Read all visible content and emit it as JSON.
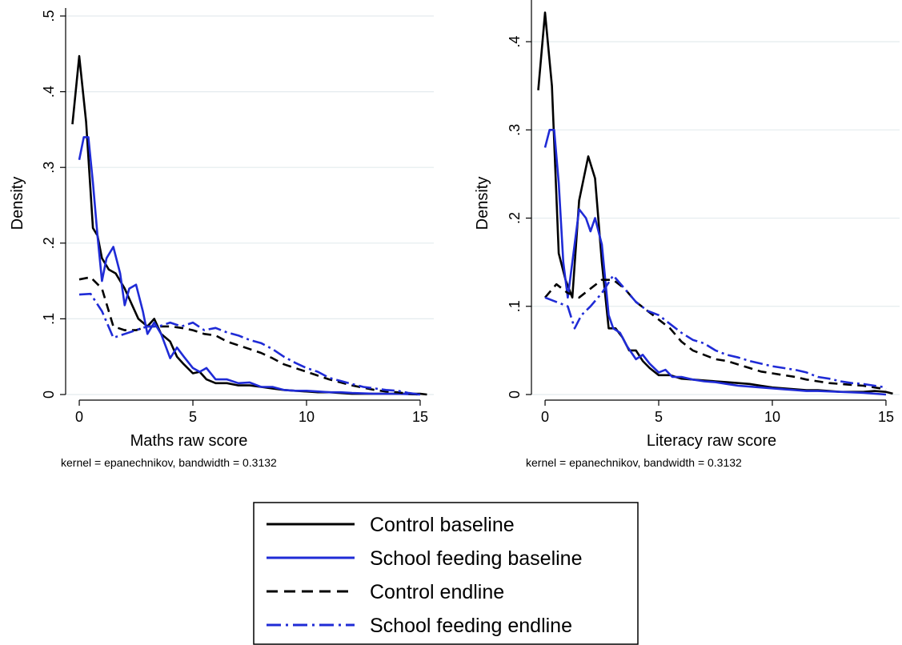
{
  "chart_data": [
    {
      "type": "line",
      "xlabel": "Maths raw score",
      "ylabel": "Density",
      "note": "kernel = epanechnikov, bandwidth = 0.3132",
      "xlim": [
        -0.6,
        15.6
      ],
      "ylim": [
        0,
        0.5
      ],
      "xticks": [
        0,
        5,
        10,
        15
      ],
      "xtick_labels": [
        "0",
        "5",
        "10",
        "15"
      ],
      "yticks": [
        0,
        0.1,
        0.2,
        0.3,
        0.4,
        0.5
      ],
      "ytick_labels": [
        "0",
        ".1",
        ".2",
        ".3",
        ".4",
        ".5"
      ],
      "grid": true,
      "series": [
        {
          "name": "Control baseline",
          "color": "#000000",
          "dash": "solid",
          "x": [
            -0.3,
            0,
            0.3,
            0.6,
            0.8,
            1,
            1.3,
            1.6,
            2,
            2.3,
            2.6,
            3,
            3.3,
            3.6,
            4,
            4.3,
            4.6,
            5,
            5.3,
            5.6,
            6,
            6.5,
            7,
            7.5,
            8,
            8.5,
            9,
            9.5,
            10,
            10.5,
            11,
            11.5,
            12,
            12.5,
            13,
            13.5,
            14,
            14.5,
            15,
            15.3
          ],
          "y": [
            0.357,
            0.447,
            0.36,
            0.22,
            0.21,
            0.18,
            0.165,
            0.16,
            0.14,
            0.12,
            0.1,
            0.09,
            0.1,
            0.08,
            0.07,
            0.05,
            0.04,
            0.028,
            0.03,
            0.02,
            0.015,
            0.015,
            0.012,
            0.012,
            0.01,
            0.008,
            0.006,
            0.005,
            0.004,
            0.003,
            0.003,
            0.002,
            0.001,
            0.001,
            0.001,
            0.001,
            0.001,
            0.001,
            0.001,
            0
          ]
        },
        {
          "name": "School feeding baseline",
          "color": "#1f2bd6",
          "dash": "solid",
          "x": [
            0,
            0.2,
            0.4,
            0.6,
            0.8,
            1,
            1.2,
            1.5,
            1.8,
            2,
            2.2,
            2.5,
            2.8,
            3,
            3.3,
            3.6,
            4,
            4.3,
            4.6,
            5,
            5.3,
            5.6,
            6,
            6.5,
            7,
            7.5,
            8,
            8.5,
            9,
            9.5,
            10,
            10.5,
            11,
            11.5,
            12,
            13,
            14,
            15
          ],
          "y": [
            0.31,
            0.34,
            0.34,
            0.28,
            0.21,
            0.15,
            0.18,
            0.195,
            0.16,
            0.118,
            0.14,
            0.145,
            0.11,
            0.08,
            0.095,
            0.08,
            0.048,
            0.062,
            0.05,
            0.035,
            0.03,
            0.035,
            0.02,
            0.02,
            0.015,
            0.016,
            0.01,
            0.01,
            0.006,
            0.005,
            0.005,
            0.004,
            0.003,
            0.003,
            0.002,
            0.001,
            0.001,
            0
          ]
        },
        {
          "name": "Control endline",
          "color": "#000000",
          "dash": "dashed",
          "x": [
            0,
            0.5,
            1,
            1.5,
            2,
            2.5,
            3,
            3.5,
            4,
            4.5,
            5,
            5.5,
            6,
            6.5,
            7,
            7.5,
            8,
            8.5,
            9,
            9.5,
            10,
            10.5,
            11,
            11.5,
            12,
            12.5,
            13,
            13.5,
            14,
            14.5,
            15
          ],
          "y": [
            0.152,
            0.155,
            0.14,
            0.09,
            0.085,
            0.085,
            0.09,
            0.09,
            0.09,
            0.088,
            0.085,
            0.08,
            0.078,
            0.07,
            0.065,
            0.06,
            0.055,
            0.048,
            0.04,
            0.035,
            0.03,
            0.025,
            0.02,
            0.016,
            0.012,
            0.009,
            0.006,
            0.004,
            0.003,
            0.001,
            0
          ]
        },
        {
          "name": "School feeding endline",
          "color": "#1f2bd6",
          "dash": "dashdot",
          "x": [
            0,
            0.5,
            1,
            1.5,
            2,
            2.5,
            3,
            3.5,
            4,
            4.5,
            5,
            5.5,
            6,
            6.5,
            7,
            7.5,
            8,
            8.5,
            9,
            9.5,
            10,
            10.5,
            11,
            11.5,
            12,
            12.5,
            13,
            13.5,
            14,
            14.5,
            15
          ],
          "y": [
            0.132,
            0.133,
            0.11,
            0.075,
            0.08,
            0.085,
            0.09,
            0.09,
            0.095,
            0.09,
            0.095,
            0.085,
            0.088,
            0.082,
            0.078,
            0.072,
            0.068,
            0.06,
            0.05,
            0.042,
            0.035,
            0.03,
            0.022,
            0.018,
            0.014,
            0.01,
            0.008,
            0.006,
            0.005,
            0.002,
            0
          ]
        }
      ]
    },
    {
      "type": "line",
      "xlabel": "Literacy raw score",
      "ylabel": "Density",
      "note": "kernel = epanechnikov, bandwidth = 0.3132",
      "xlim": [
        -0.6,
        15.6
      ],
      "ylim": [
        0,
        0.44
      ],
      "xticks": [
        0,
        5,
        10,
        15
      ],
      "xtick_labels": [
        "0",
        "5",
        "10",
        "15"
      ],
      "yticks": [
        0,
        0.1,
        0.2,
        0.3,
        0.4
      ],
      "ytick_labels": [
        "0",
        ".1",
        ".2",
        ".3",
        ".4"
      ],
      "grid": true,
      "series": [
        {
          "name": "Control baseline",
          "color": "#000000",
          "dash": "solid",
          "x": [
            -0.3,
            0,
            0.3,
            0.6,
            0.9,
            1.2,
            1.5,
            1.9,
            2.2,
            2.5,
            2.8,
            3.1,
            3.4,
            3.7,
            4,
            4.3,
            4.6,
            5,
            5.5,
            6,
            6.5,
            7,
            7.5,
            8,
            8.5,
            9,
            9.5,
            10,
            10.5,
            11,
            11.5,
            12,
            12.5,
            13,
            13.5,
            14,
            14.5,
            15,
            15.3
          ],
          "y": [
            0.345,
            0.433,
            0.35,
            0.16,
            0.13,
            0.11,
            0.22,
            0.27,
            0.245,
            0.15,
            0.075,
            0.075,
            0.065,
            0.05,
            0.05,
            0.038,
            0.03,
            0.022,
            0.022,
            0.018,
            0.017,
            0.016,
            0.015,
            0.014,
            0.013,
            0.012,
            0.01,
            0.008,
            0.007,
            0.006,
            0.005,
            0.005,
            0.004,
            0.003,
            0.003,
            0.003,
            0.004,
            0.003,
            0.001
          ]
        },
        {
          "name": "School feeding baseline",
          "color": "#1f2bd6",
          "dash": "solid",
          "x": [
            0,
            0.2,
            0.4,
            0.6,
            0.8,
            1,
            1.2,
            1.5,
            1.8,
            2,
            2.2,
            2.5,
            2.8,
            3,
            3.3,
            3.6,
            4,
            4.3,
            4.6,
            5,
            5.3,
            5.6,
            6,
            6.5,
            7,
            7.5,
            8,
            8.5,
            9,
            9.5,
            10,
            10.5,
            11,
            11.5,
            12,
            13,
            14,
            15
          ],
          "y": [
            0.28,
            0.3,
            0.3,
            0.24,
            0.15,
            0.11,
            0.15,
            0.21,
            0.2,
            0.185,
            0.2,
            0.17,
            0.09,
            0.075,
            0.07,
            0.055,
            0.04,
            0.045,
            0.035,
            0.025,
            0.028,
            0.02,
            0.02,
            0.017,
            0.015,
            0.014,
            0.012,
            0.01,
            0.009,
            0.008,
            0.007,
            0.006,
            0.005,
            0.004,
            0.004,
            0.003,
            0.002,
            0
          ]
        },
        {
          "name": "Control endline",
          "color": "#000000",
          "dash": "dashed",
          "x": [
            0,
            0.5,
            1,
            1.5,
            2,
            2.5,
            3,
            3.5,
            4,
            4.5,
            5,
            5.5,
            6,
            6.5,
            7,
            7.5,
            8,
            8.5,
            9,
            9.5,
            10,
            10.5,
            11,
            11.5,
            12,
            12.5,
            13,
            13.5,
            14,
            14.5,
            15
          ],
          "y": [
            0.11,
            0.125,
            0.115,
            0.11,
            0.12,
            0.13,
            0.13,
            0.12,
            0.105,
            0.095,
            0.085,
            0.075,
            0.06,
            0.05,
            0.045,
            0.04,
            0.038,
            0.034,
            0.03,
            0.026,
            0.024,
            0.022,
            0.02,
            0.017,
            0.015,
            0.013,
            0.012,
            0.011,
            0.01,
            0.008,
            0.006
          ]
        },
        {
          "name": "School feeding endline",
          "color": "#1f2bd6",
          "dash": "dashdot",
          "x": [
            0,
            0.5,
            1,
            1.3,
            1.6,
            2,
            2.5,
            3,
            3.5,
            4,
            4.5,
            5,
            5.5,
            6,
            6.5,
            7,
            7.5,
            8,
            8.5,
            9,
            9.5,
            10,
            10.5,
            11,
            11.5,
            12,
            12.5,
            13,
            13.5,
            14,
            14.5,
            15
          ],
          "y": [
            0.11,
            0.105,
            0.1,
            0.075,
            0.09,
            0.1,
            0.115,
            0.135,
            0.12,
            0.105,
            0.095,
            0.09,
            0.08,
            0.07,
            0.062,
            0.058,
            0.05,
            0.045,
            0.042,
            0.038,
            0.035,
            0.032,
            0.03,
            0.028,
            0.025,
            0.02,
            0.018,
            0.015,
            0.013,
            0.012,
            0.01,
            0.008
          ]
        }
      ]
    }
  ],
  "legend": {
    "placement": "bottom-center",
    "items": [
      {
        "label": "Control baseline",
        "color": "#000000",
        "dash": "solid"
      },
      {
        "label": "School feeding baseline",
        "color": "#1f2bd6",
        "dash": "solid"
      },
      {
        "label": "Control endline",
        "color": "#000000",
        "dash": "dashed"
      },
      {
        "label": "School feeding endline",
        "color": "#1f2bd6",
        "dash": "dashdot"
      }
    ]
  }
}
